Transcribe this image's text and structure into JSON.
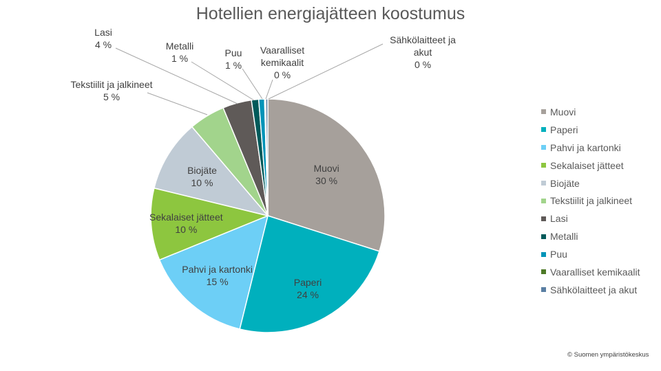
{
  "title": "Hotellien energiajätteen koostumus",
  "copyright": "© Suomen ympäristökeskus",
  "chart_data": {
    "type": "pie",
    "title": "Hotellien energiajätteen koostumus",
    "legend_position": "right",
    "start": "top, clockwise",
    "slices": [
      {
        "label": "Muovi",
        "value": 30,
        "value_label": "30 %",
        "color": "#a6a09b"
      },
      {
        "label": "Paperi",
        "value": 24,
        "value_label": "24 %",
        "color": "#00b0bd"
      },
      {
        "label": "Pahvi ja kartonki",
        "value": 15,
        "value_label": "15 %",
        "color": "#6dcff6"
      },
      {
        "label": "Sekalaiset jätteet",
        "value": 10,
        "value_label": "10 %",
        "color": "#8dc63f"
      },
      {
        "label": "Biojäte",
        "value": 10,
        "value_label": "10 %",
        "color": "#c0cbd5"
      },
      {
        "label": "Tekstiilit ja jalkineet",
        "value": 5,
        "value_label": "5 %",
        "color": "#a2d48c"
      },
      {
        "label": "Lasi",
        "value": 4,
        "value_label": "4 %",
        "color": "#5f5a58"
      },
      {
        "label": "Metalli",
        "value": 1,
        "value_label": "1 %",
        "color": "#005a5a"
      },
      {
        "label": "Puu",
        "value": 0.8,
        "value_label": "1 %",
        "color": "#0094b8"
      },
      {
        "label": "Vaaralliset kemikaalit",
        "value": 0.15,
        "value_label": "0 %",
        "color": "#4e7a28"
      },
      {
        "label": "Sähkölaitteet ja akut",
        "value": 0.3,
        "value_label": "0 %",
        "color": "#5a7fa3"
      }
    ]
  }
}
